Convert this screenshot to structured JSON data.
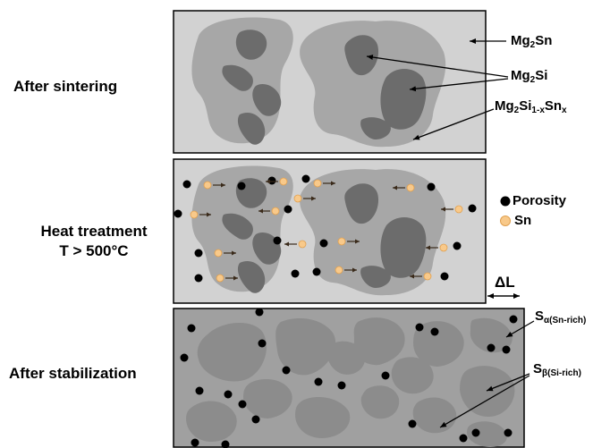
{
  "stages": {
    "sintering": "After sintering",
    "heat_line1": "Heat treatment",
    "heat_line2": "T > 500°C",
    "stabilization": "After stabilization"
  },
  "labels": {
    "mg2sn": {
      "base": "Mg",
      "sub": "2",
      "rest": "Sn"
    },
    "mg2si": {
      "base": "Mg",
      "sub": "2",
      "rest": "Si"
    },
    "solid_solution": {
      "a": "Mg",
      "a_sub": "2",
      "b": "Si",
      "b_sub": "1-x",
      "c": "Sn",
      "c_sub": "x"
    },
    "porosity": "Porosity",
    "sn": "Sn",
    "delta_l": "ΔL",
    "s_alpha": {
      "base": "S",
      "sub": "α(Sn-rich)"
    },
    "s_beta": {
      "base": "S",
      "sub": "β(Si-rich)"
    }
  },
  "colors": {
    "matrix_light": "#d2d2d2",
    "solid_solution": "#a7a7a7",
    "mg2si_core": "#6c6c6c",
    "stabilized_matrix": "#a0a0a0",
    "stabilized_grain": "#8c8c8c",
    "pore": "#000000",
    "sn_particle": "#f8c98a"
  }
}
